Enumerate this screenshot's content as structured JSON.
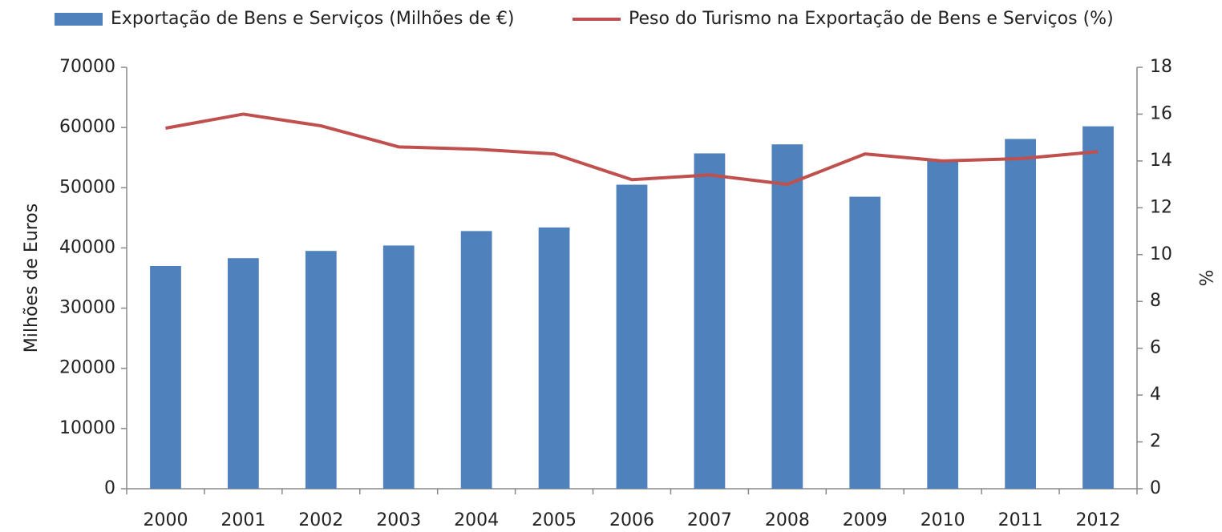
{
  "chart_data": {
    "type": "bar_line",
    "categories": [
      "2000",
      "2001",
      "2002",
      "2003",
      "2004",
      "2005",
      "2006",
      "2007",
      "2008",
      "2009",
      "2010",
      "2011",
      "2012"
    ],
    "series": [
      {
        "name": "Exportação de Bens e Serviços (Milhões de €)",
        "type": "bar",
        "color": "#4f81bd",
        "values": [
          37000,
          38300,
          39500,
          40400,
          42800,
          43400,
          50500,
          55700,
          57200,
          48500,
          54500,
          58100,
          60200
        ]
      },
      {
        "name": "Peso do Turismo na Exportação de Bens e  Serviços (%)",
        "type": "line",
        "axis": "y2",
        "color": "#c0504d",
        "values": [
          15.4,
          16.0,
          15.5,
          14.6,
          14.5,
          14.3,
          13.2,
          13.4,
          13.0,
          14.3,
          14.0,
          14.1,
          14.4
        ]
      }
    ],
    "ylabel": "Milhões de Euros",
    "y2label": "%",
    "ylim": [
      0,
      70000
    ],
    "yticks": [
      0,
      10000,
      20000,
      30000,
      40000,
      50000,
      60000,
      70000
    ],
    "y2lim": [
      0,
      18
    ],
    "y2ticks": [
      0,
      2,
      4,
      6,
      8,
      10,
      12,
      14,
      16,
      18
    ],
    "legend": "top"
  }
}
